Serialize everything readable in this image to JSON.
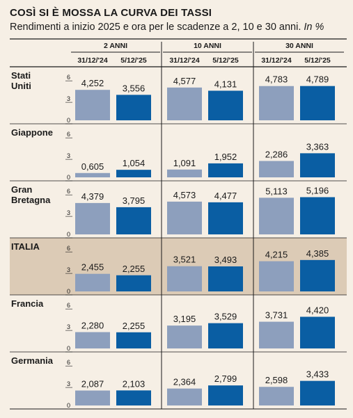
{
  "header": {
    "title": "COSÌ SI È MOSSA LA CURVA DEI TASSI",
    "subtitle": "Rendimenti a inizio 2025 e ora per le scadenze a 2, 10 e 30 anni.",
    "subtitle_unit": "In %"
  },
  "colors": {
    "background": "#f6efe5",
    "highlight_row": "#dccbb6",
    "series_old": "#8d9fbd",
    "series_new": "#0a5ea3",
    "rule": "#1a1a1a"
  },
  "chart_data": {
    "type": "bar",
    "groups": [
      "2 ANNI",
      "10 ANNI",
      "30 ANNI"
    ],
    "series": [
      {
        "name": "31/12/'24"
      },
      {
        "name": "5/12/'25"
      }
    ],
    "y_ticks": [
      "6",
      "3",
      "0"
    ],
    "ylim": [
      0,
      6
    ],
    "highlight_country": "ITALIA",
    "rows": [
      {
        "country": "Stati Uniti",
        "values": [
          [
            4.252,
            3.556
          ],
          [
            4.577,
            4.131
          ],
          [
            4.783,
            4.789
          ]
        ],
        "labels": [
          [
            "4,252",
            "3,556"
          ],
          [
            "4,577",
            "4,131"
          ],
          [
            "4,783",
            "4,789"
          ]
        ]
      },
      {
        "country": "Giappone",
        "values": [
          [
            0.605,
            1.054
          ],
          [
            1.091,
            1.952
          ],
          [
            2.286,
            3.363
          ]
        ],
        "labels": [
          [
            "0,605",
            "1,054"
          ],
          [
            "1,091",
            "1,952"
          ],
          [
            "2,286",
            "3,363"
          ]
        ]
      },
      {
        "country": "Gran Bretagna",
        "values": [
          [
            4.379,
            3.795
          ],
          [
            4.573,
            4.477
          ],
          [
            5.113,
            5.196
          ]
        ],
        "labels": [
          [
            "4,379",
            "3,795"
          ],
          [
            "4,573",
            "4,477"
          ],
          [
            "5,113",
            "5,196"
          ]
        ]
      },
      {
        "country": "ITALIA",
        "values": [
          [
            2.455,
            2.255
          ],
          [
            3.521,
            3.493
          ],
          [
            4.215,
            4.385
          ]
        ],
        "labels": [
          [
            "2,455",
            "2,255"
          ],
          [
            "3,521",
            "3,493"
          ],
          [
            "4,215",
            "4,385"
          ]
        ]
      },
      {
        "country": "Francia",
        "values": [
          [
            2.28,
            2.255
          ],
          [
            3.195,
            3.529
          ],
          [
            3.731,
            4.42
          ]
        ],
        "labels": [
          [
            "2,280",
            "2,255"
          ],
          [
            "3,195",
            "3,529"
          ],
          [
            "3,731",
            "4,420"
          ]
        ]
      },
      {
        "country": "Germania",
        "values": [
          [
            2.087,
            2.103
          ],
          [
            2.364,
            2.799
          ],
          [
            2.598,
            3.433
          ]
        ],
        "labels": [
          [
            "2,087",
            "2,103"
          ],
          [
            "2,364",
            "2,799"
          ],
          [
            "2,598",
            "3,433"
          ]
        ]
      }
    ]
  }
}
